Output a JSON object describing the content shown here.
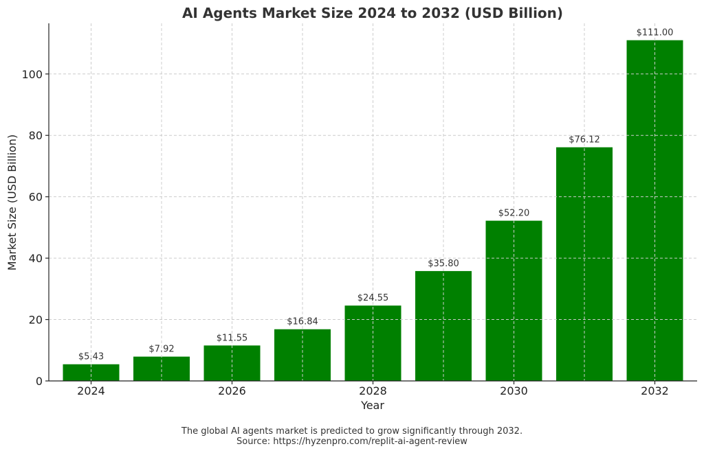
{
  "chart_data": {
    "type": "bar",
    "title": "AI Agents Market Size 2024 to 2032 (USD Billion)",
    "xlabel": "Year",
    "ylabel": "Market Size (USD Billion)",
    "x": [
      2024,
      2025,
      2026,
      2027,
      2028,
      2029,
      2030,
      2031,
      2032
    ],
    "values": [
      5.43,
      7.92,
      11.55,
      16.84,
      24.55,
      35.8,
      52.2,
      76.12,
      111.0
    ],
    "data_labels": [
      "$5.43",
      "$7.92",
      "$11.55",
      "$16.84",
      "$24.55",
      "$35.80",
      "$52.20",
      "$76.12",
      "$111.00"
    ],
    "xticks": [
      2024,
      2026,
      2028,
      2030,
      2032
    ],
    "xticklabels": [
      "2024",
      "2026",
      "2028",
      "2030",
      "2032"
    ],
    "xlim": [
      2023.4,
      2032.6
    ],
    "yticks": [
      0,
      20,
      40,
      60,
      80,
      100
    ],
    "yticklabels": [
      "0",
      "20",
      "40",
      "60",
      "80",
      "100"
    ],
    "ylim": [
      0,
      116.5
    ],
    "grid": true,
    "bar_color": "#008000"
  },
  "caption": {
    "line1": "The global AI agents market is predicted to grow significantly through 2032.",
    "line2": "Source: https://hyzenpro.com/replit-ai-agent-review"
  }
}
